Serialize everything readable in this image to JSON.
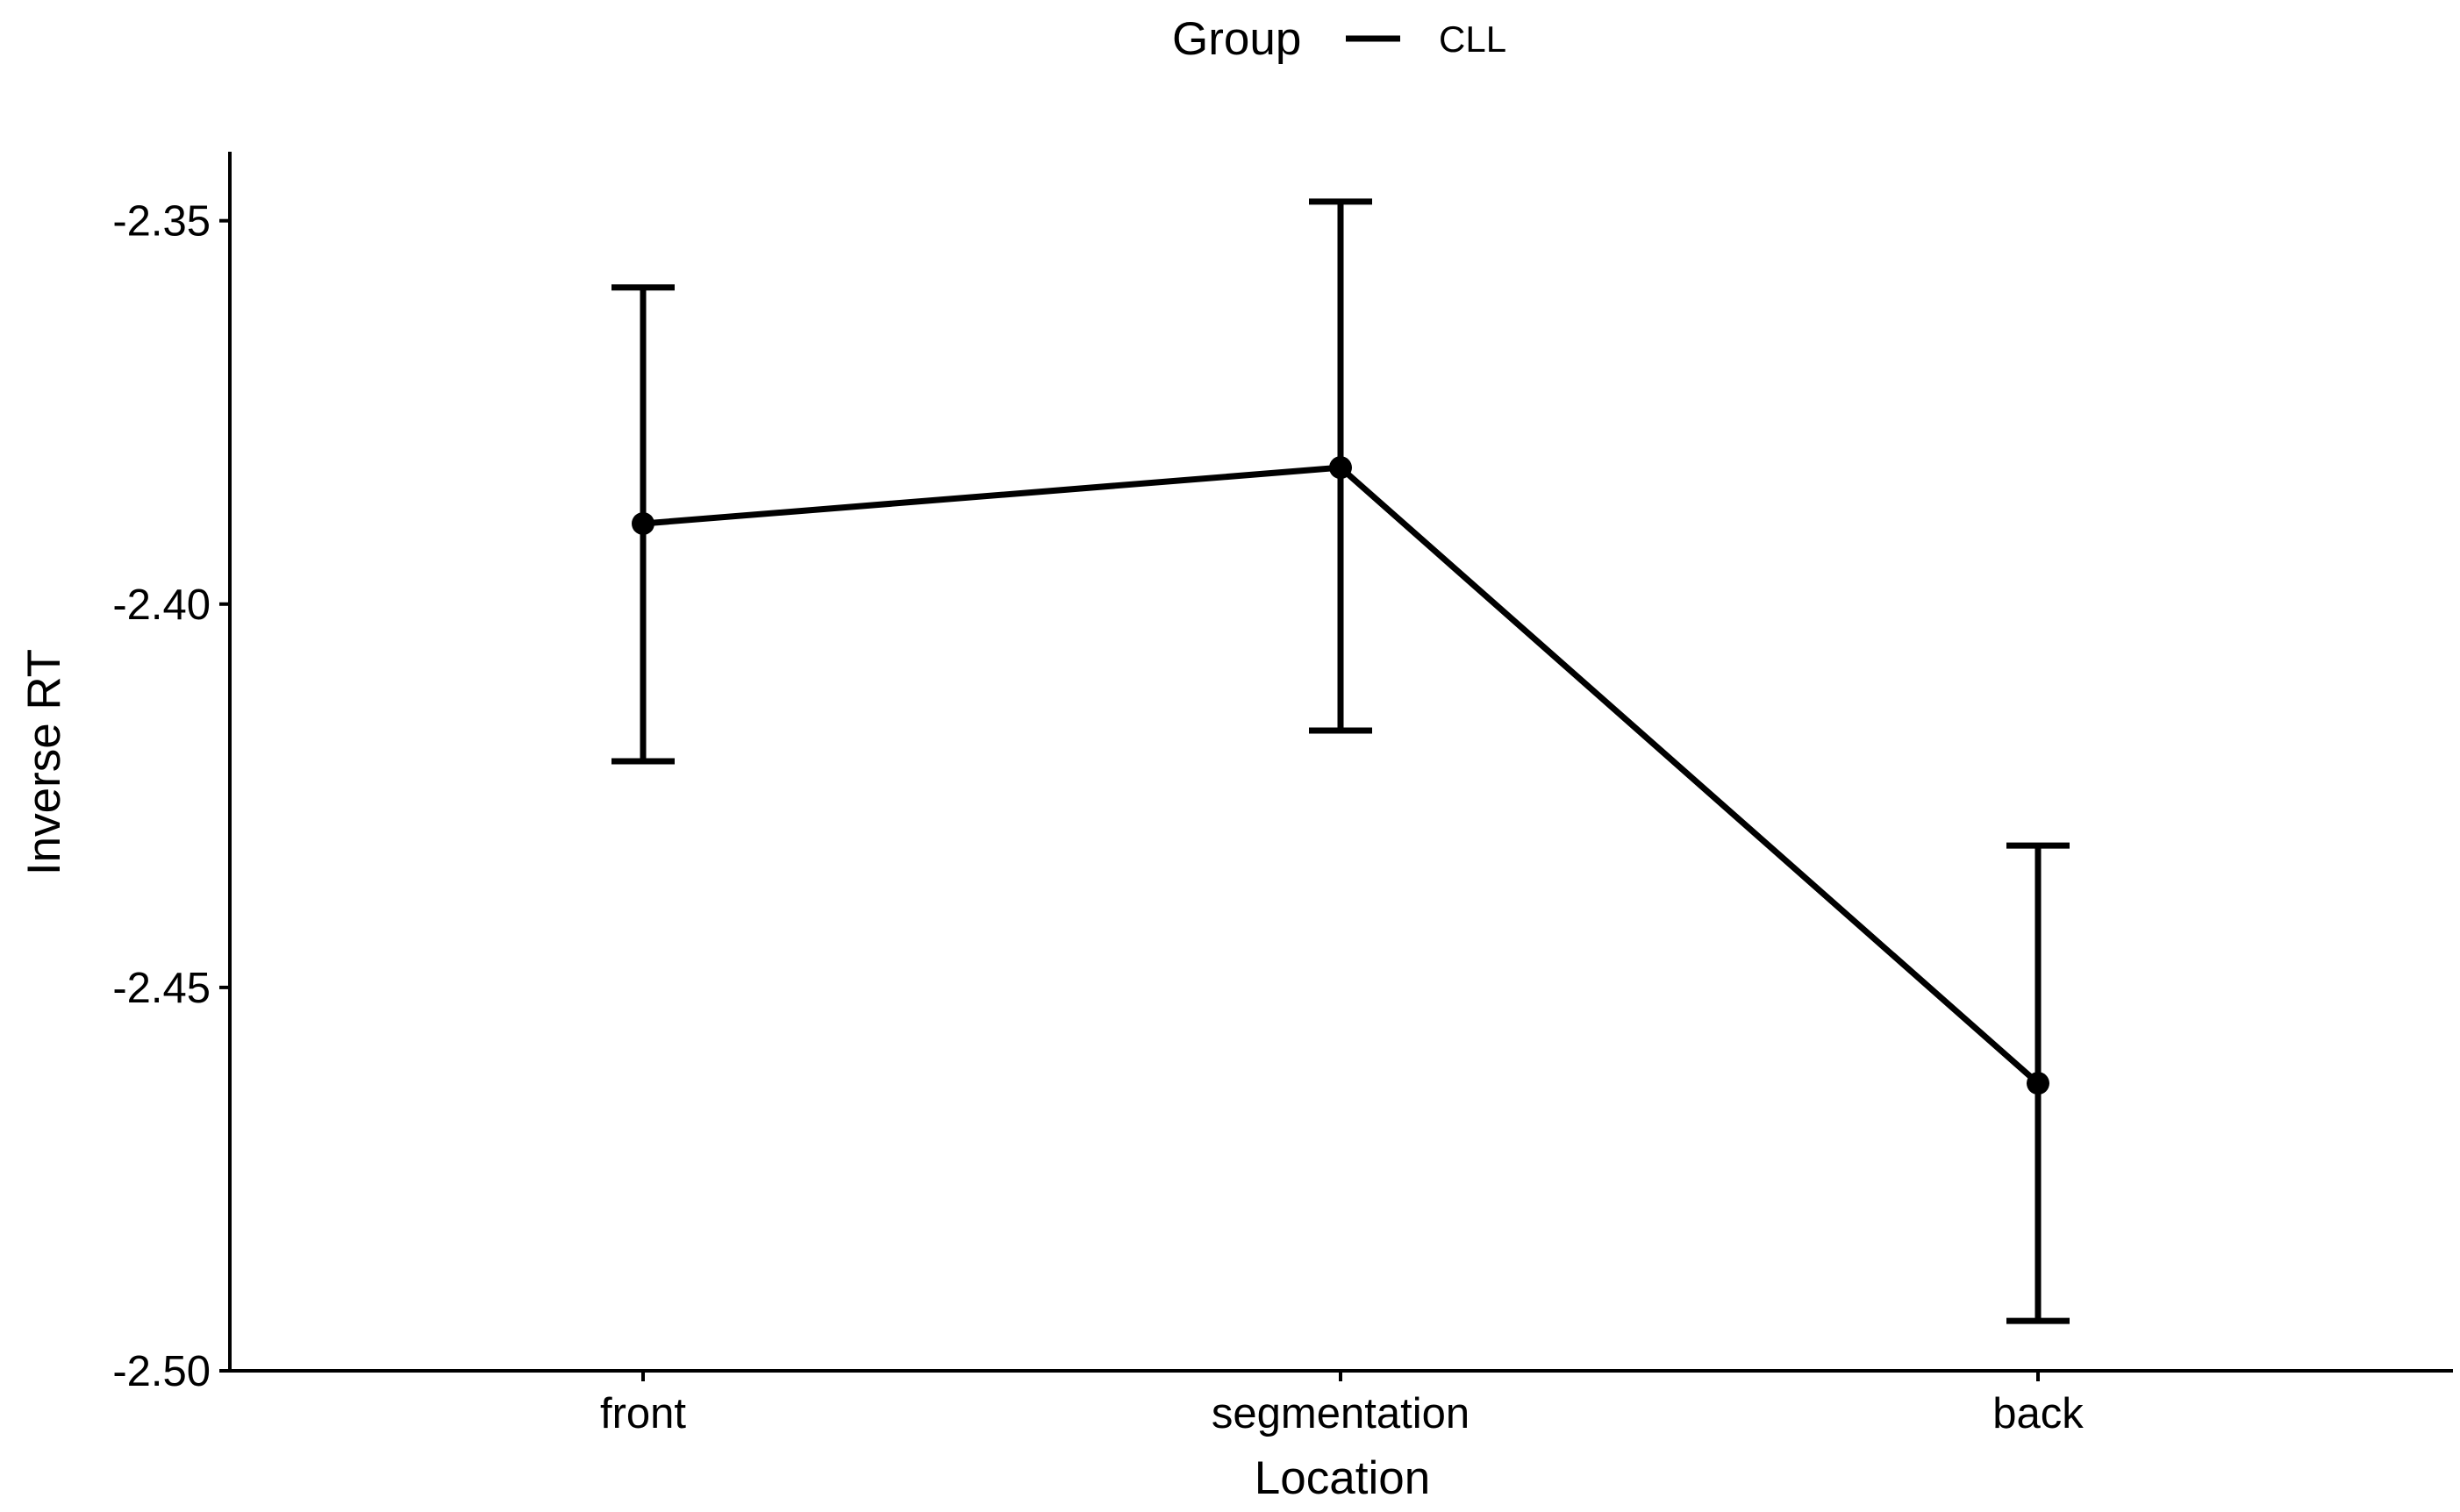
{
  "chart_data": {
    "type": "line",
    "title": "",
    "xlabel": "Location",
    "ylabel": "Inverse RT",
    "categories": [
      "front",
      "segmentation",
      "back"
    ],
    "ylim": [
      -2.5,
      -2.341
    ],
    "yticks": [
      -2.5,
      -2.45,
      -2.4,
      -2.35
    ],
    "ytick_labels": [
      "-2.50",
      "-2.45",
      "-2.40",
      "-2.35"
    ],
    "grid": false,
    "legend": {
      "title": "Group",
      "position": "top",
      "entries": [
        "CLL"
      ]
    },
    "series": [
      {
        "name": "CLL",
        "color": "#000000",
        "values": [
          -2.3895,
          -2.3822,
          -2.4625
        ],
        "error_lower": [
          -2.4205,
          -2.4165,
          -2.4935
        ],
        "error_upper": [
          -2.3587,
          -2.3475,
          -2.4315
        ]
      }
    ]
  }
}
